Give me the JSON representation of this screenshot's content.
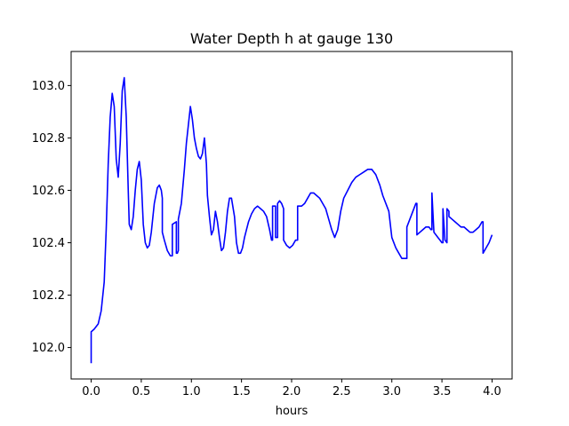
{
  "chart_data": {
    "type": "line",
    "title": "Water Depth h at gauge 130",
    "xlabel": "hours",
    "ylabel": "",
    "xlim": [
      -0.2,
      4.2
    ],
    "ylim": [
      101.88,
      103.13
    ],
    "xticks": [
      0.0,
      0.5,
      1.0,
      1.5,
      2.0,
      2.5,
      3.0,
      3.5,
      4.0
    ],
    "xtick_labels": [
      "0.0",
      "0.5",
      "1.0",
      "1.5",
      "2.0",
      "2.5",
      "3.0",
      "3.5",
      "4.0"
    ],
    "yticks": [
      102.0,
      102.2,
      102.4,
      102.6,
      102.8,
      103.0
    ],
    "ytick_labels": [
      "102.0",
      "102.2",
      "102.4",
      "102.6",
      "102.8",
      "103.0"
    ],
    "grid": false,
    "series": [
      {
        "color": "#0000ff",
        "x": [
          0.0,
          0.0,
          0.03,
          0.07,
          0.1,
          0.13,
          0.15,
          0.17,
          0.19,
          0.21,
          0.23,
          0.25,
          0.27,
          0.29,
          0.31,
          0.33,
          0.35,
          0.37,
          0.38,
          0.4,
          0.42,
          0.44,
          0.46,
          0.48,
          0.5,
          0.52,
          0.54,
          0.56,
          0.58,
          0.6,
          0.63,
          0.66,
          0.68,
          0.7,
          0.71,
          0.71,
          0.73,
          0.76,
          0.79,
          0.81,
          0.81,
          0.85,
          0.85,
          0.86,
          0.87,
          0.87,
          0.9,
          0.93,
          0.95,
          0.97,
          0.99,
          1.01,
          1.03,
          1.05,
          1.07,
          1.09,
          1.11,
          1.13,
          1.15,
          1.16,
          1.18,
          1.2,
          1.22,
          1.24,
          1.26,
          1.28,
          1.3,
          1.32,
          1.34,
          1.36,
          1.38,
          1.4,
          1.43,
          1.45,
          1.47,
          1.49,
          1.51,
          1.53,
          1.55,
          1.57,
          1.6,
          1.63,
          1.66,
          1.69,
          1.72,
          1.75,
          1.78,
          1.8,
          1.81,
          1.81,
          1.84,
          1.84,
          1.86,
          1.86,
          1.88,
          1.9,
          1.92,
          1.92,
          1.95,
          1.98,
          2.01,
          2.04,
          2.06,
          2.06,
          2.1,
          2.13,
          2.16,
          2.19,
          2.22,
          2.25,
          2.28,
          2.31,
          2.34,
          2.37,
          2.4,
          2.43,
          2.46,
          2.49,
          2.52,
          2.56,
          2.6,
          2.64,
          2.68,
          2.72,
          2.76,
          2.8,
          2.84,
          2.88,
          2.91,
          2.94,
          2.97,
          3.0,
          3.01,
          3.04,
          3.07,
          3.1,
          3.13,
          3.15,
          3.15,
          3.18,
          3.21,
          3.24,
          3.25,
          3.25,
          3.28,
          3.31,
          3.34,
          3.37,
          3.39,
          3.4,
          3.4,
          3.42,
          3.44,
          3.46,
          3.48,
          3.5,
          3.51,
          3.51,
          3.53,
          3.55,
          3.55,
          3.57,
          3.57,
          3.6,
          3.63,
          3.66,
          3.69,
          3.72,
          3.75,
          3.78,
          3.81,
          3.84,
          3.87,
          3.9,
          3.91,
          3.91,
          3.94,
          3.97,
          4.0
        ],
        "values": [
          101.94,
          102.06,
          102.07,
          102.09,
          102.14,
          102.25,
          102.45,
          102.7,
          102.88,
          102.97,
          102.92,
          102.72,
          102.65,
          102.78,
          102.98,
          103.03,
          102.88,
          102.6,
          102.47,
          102.45,
          102.5,
          102.6,
          102.68,
          102.71,
          102.64,
          102.47,
          102.4,
          102.38,
          102.39,
          102.44,
          102.55,
          102.61,
          102.62,
          102.6,
          102.57,
          102.44,
          102.41,
          102.37,
          102.35,
          102.35,
          102.47,
          102.48,
          102.36,
          102.36,
          102.37,
          102.49,
          102.55,
          102.68,
          102.78,
          102.85,
          102.92,
          102.87,
          102.8,
          102.76,
          102.73,
          102.72,
          102.74,
          102.8,
          102.7,
          102.58,
          102.5,
          102.43,
          102.45,
          102.52,
          102.48,
          102.42,
          102.37,
          102.38,
          102.44,
          102.52,
          102.57,
          102.57,
          102.5,
          102.4,
          102.36,
          102.36,
          102.38,
          102.42,
          102.45,
          102.48,
          102.51,
          102.53,
          102.54,
          102.53,
          102.52,
          102.5,
          102.45,
          102.41,
          102.41,
          102.54,
          102.54,
          102.42,
          102.42,
          102.55,
          102.56,
          102.55,
          102.53,
          102.41,
          102.39,
          102.38,
          102.39,
          102.41,
          102.41,
          102.54,
          102.54,
          102.55,
          102.57,
          102.59,
          102.59,
          102.58,
          102.57,
          102.55,
          102.53,
          102.49,
          102.45,
          102.42,
          102.45,
          102.52,
          102.57,
          102.6,
          102.63,
          102.65,
          102.66,
          102.67,
          102.68,
          102.68,
          102.66,
          102.62,
          102.58,
          102.55,
          102.52,
          102.42,
          102.41,
          102.38,
          102.36,
          102.34,
          102.34,
          102.34,
          102.46,
          102.49,
          102.52,
          102.55,
          102.55,
          102.43,
          102.44,
          102.45,
          102.46,
          102.46,
          102.45,
          102.45,
          102.59,
          102.44,
          102.43,
          102.42,
          102.41,
          102.4,
          102.4,
          102.53,
          102.41,
          102.4,
          102.53,
          102.52,
          102.5,
          102.49,
          102.48,
          102.47,
          102.46,
          102.46,
          102.45,
          102.44,
          102.44,
          102.45,
          102.46,
          102.48,
          102.48,
          102.36,
          102.38,
          102.4,
          102.43
        ]
      }
    ]
  }
}
